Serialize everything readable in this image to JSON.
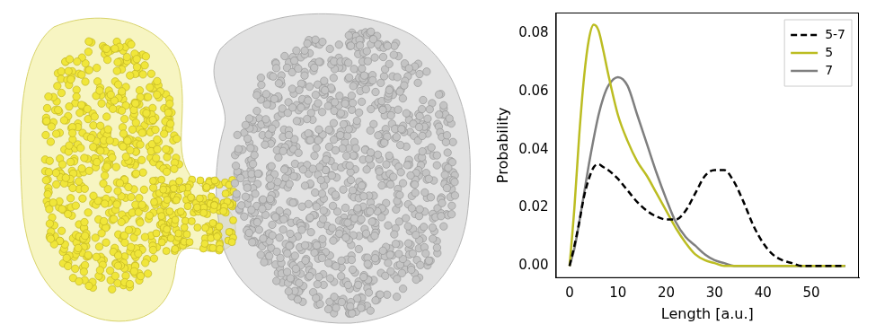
{
  "chart_data": {
    "type": "line",
    "x_label": "Length [a.u.]",
    "y_label": "Probability",
    "x": [
      0,
      1,
      2,
      3,
      4,
      5,
      6,
      7,
      8,
      10,
      12,
      14,
      16,
      18,
      20,
      22,
      24,
      26,
      28,
      30,
      32,
      34,
      36,
      38,
      40,
      42,
      44,
      46,
      48,
      52,
      57
    ],
    "series": [
      {
        "name": "5-7",
        "color": "#000000",
        "line_style": "dashed",
        "values": [
          0,
          0.007,
          0.015,
          0.024,
          0.03,
          0.034,
          0.035,
          0.034,
          0.033,
          0.03,
          0.026,
          0.022,
          0.019,
          0.017,
          0.016,
          0.016,
          0.019,
          0.025,
          0.031,
          0.033,
          0.033,
          0.029,
          0.022,
          0.014,
          0.008,
          0.004,
          0.002,
          0.001,
          0,
          0,
          0
        ]
      },
      {
        "name": "5",
        "color": "#bcbd22",
        "line_style": "solid",
        "values": [
          0,
          0.02,
          0.045,
          0.065,
          0.078,
          0.083,
          0.081,
          0.074,
          0.066,
          0.052,
          0.043,
          0.036,
          0.031,
          0.025,
          0.019,
          0.013,
          0.008,
          0.004,
          0.002,
          0.001,
          0,
          0,
          0,
          0,
          0,
          0,
          0,
          0,
          0,
          0,
          0
        ]
      },
      {
        "name": "7",
        "color": "#7f7f7f",
        "line_style": "solid",
        "values": [
          0,
          0.006,
          0.015,
          0.025,
          0.035,
          0.044,
          0.052,
          0.058,
          0.062,
          0.065,
          0.062,
          0.052,
          0.042,
          0.032,
          0.023,
          0.015,
          0.01,
          0.007,
          0.004,
          0.002,
          0.001,
          0,
          0,
          0,
          0,
          0,
          0,
          0,
          0,
          0,
          0
        ]
      }
    ],
    "xlim": [
      -2.85,
      59.85
    ],
    "xticks": [
      0,
      10,
      20,
      30,
      40,
      50
    ],
    "ylim": [
      -0.00415,
      0.0872
    ],
    "yticks": [
      {
        "value": 0,
        "label": "0.00"
      },
      {
        "value": 0.02,
        "label": "0.02"
      },
      {
        "value": 0.04,
        "label": "0.04"
      },
      {
        "value": 0.06,
        "label": "0.06"
      },
      {
        "value": 0.08,
        "label": "0.08"
      }
    ],
    "grid": false,
    "legend": "upper right"
  }
}
